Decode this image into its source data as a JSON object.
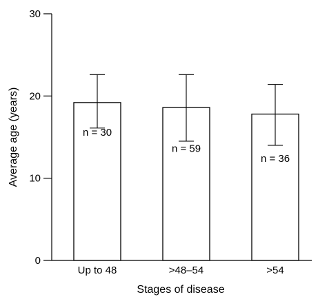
{
  "chart_data": {
    "type": "bar",
    "title": "",
    "xlabel": "Stages of disease",
    "ylabel": "Average age (years)",
    "ylim": [
      0,
      30
    ],
    "yticks": [
      0,
      10,
      20,
      30
    ],
    "categories": [
      "Up to 48",
      ">48–54",
      ">54"
    ],
    "values": [
      19.2,
      18.6,
      17.8
    ],
    "error_low": [
      16.1,
      14.5,
      14.0
    ],
    "error_high": [
      22.6,
      22.6,
      21.4
    ],
    "bar_labels": [
      "n = 30",
      "n = 59",
      "n = 36"
    ],
    "bar_label_values": [
      15.6,
      13.6,
      12.4
    ],
    "grid": false,
    "colors": {
      "bar_fill": "#ffffff",
      "stroke": "#000000"
    }
  }
}
